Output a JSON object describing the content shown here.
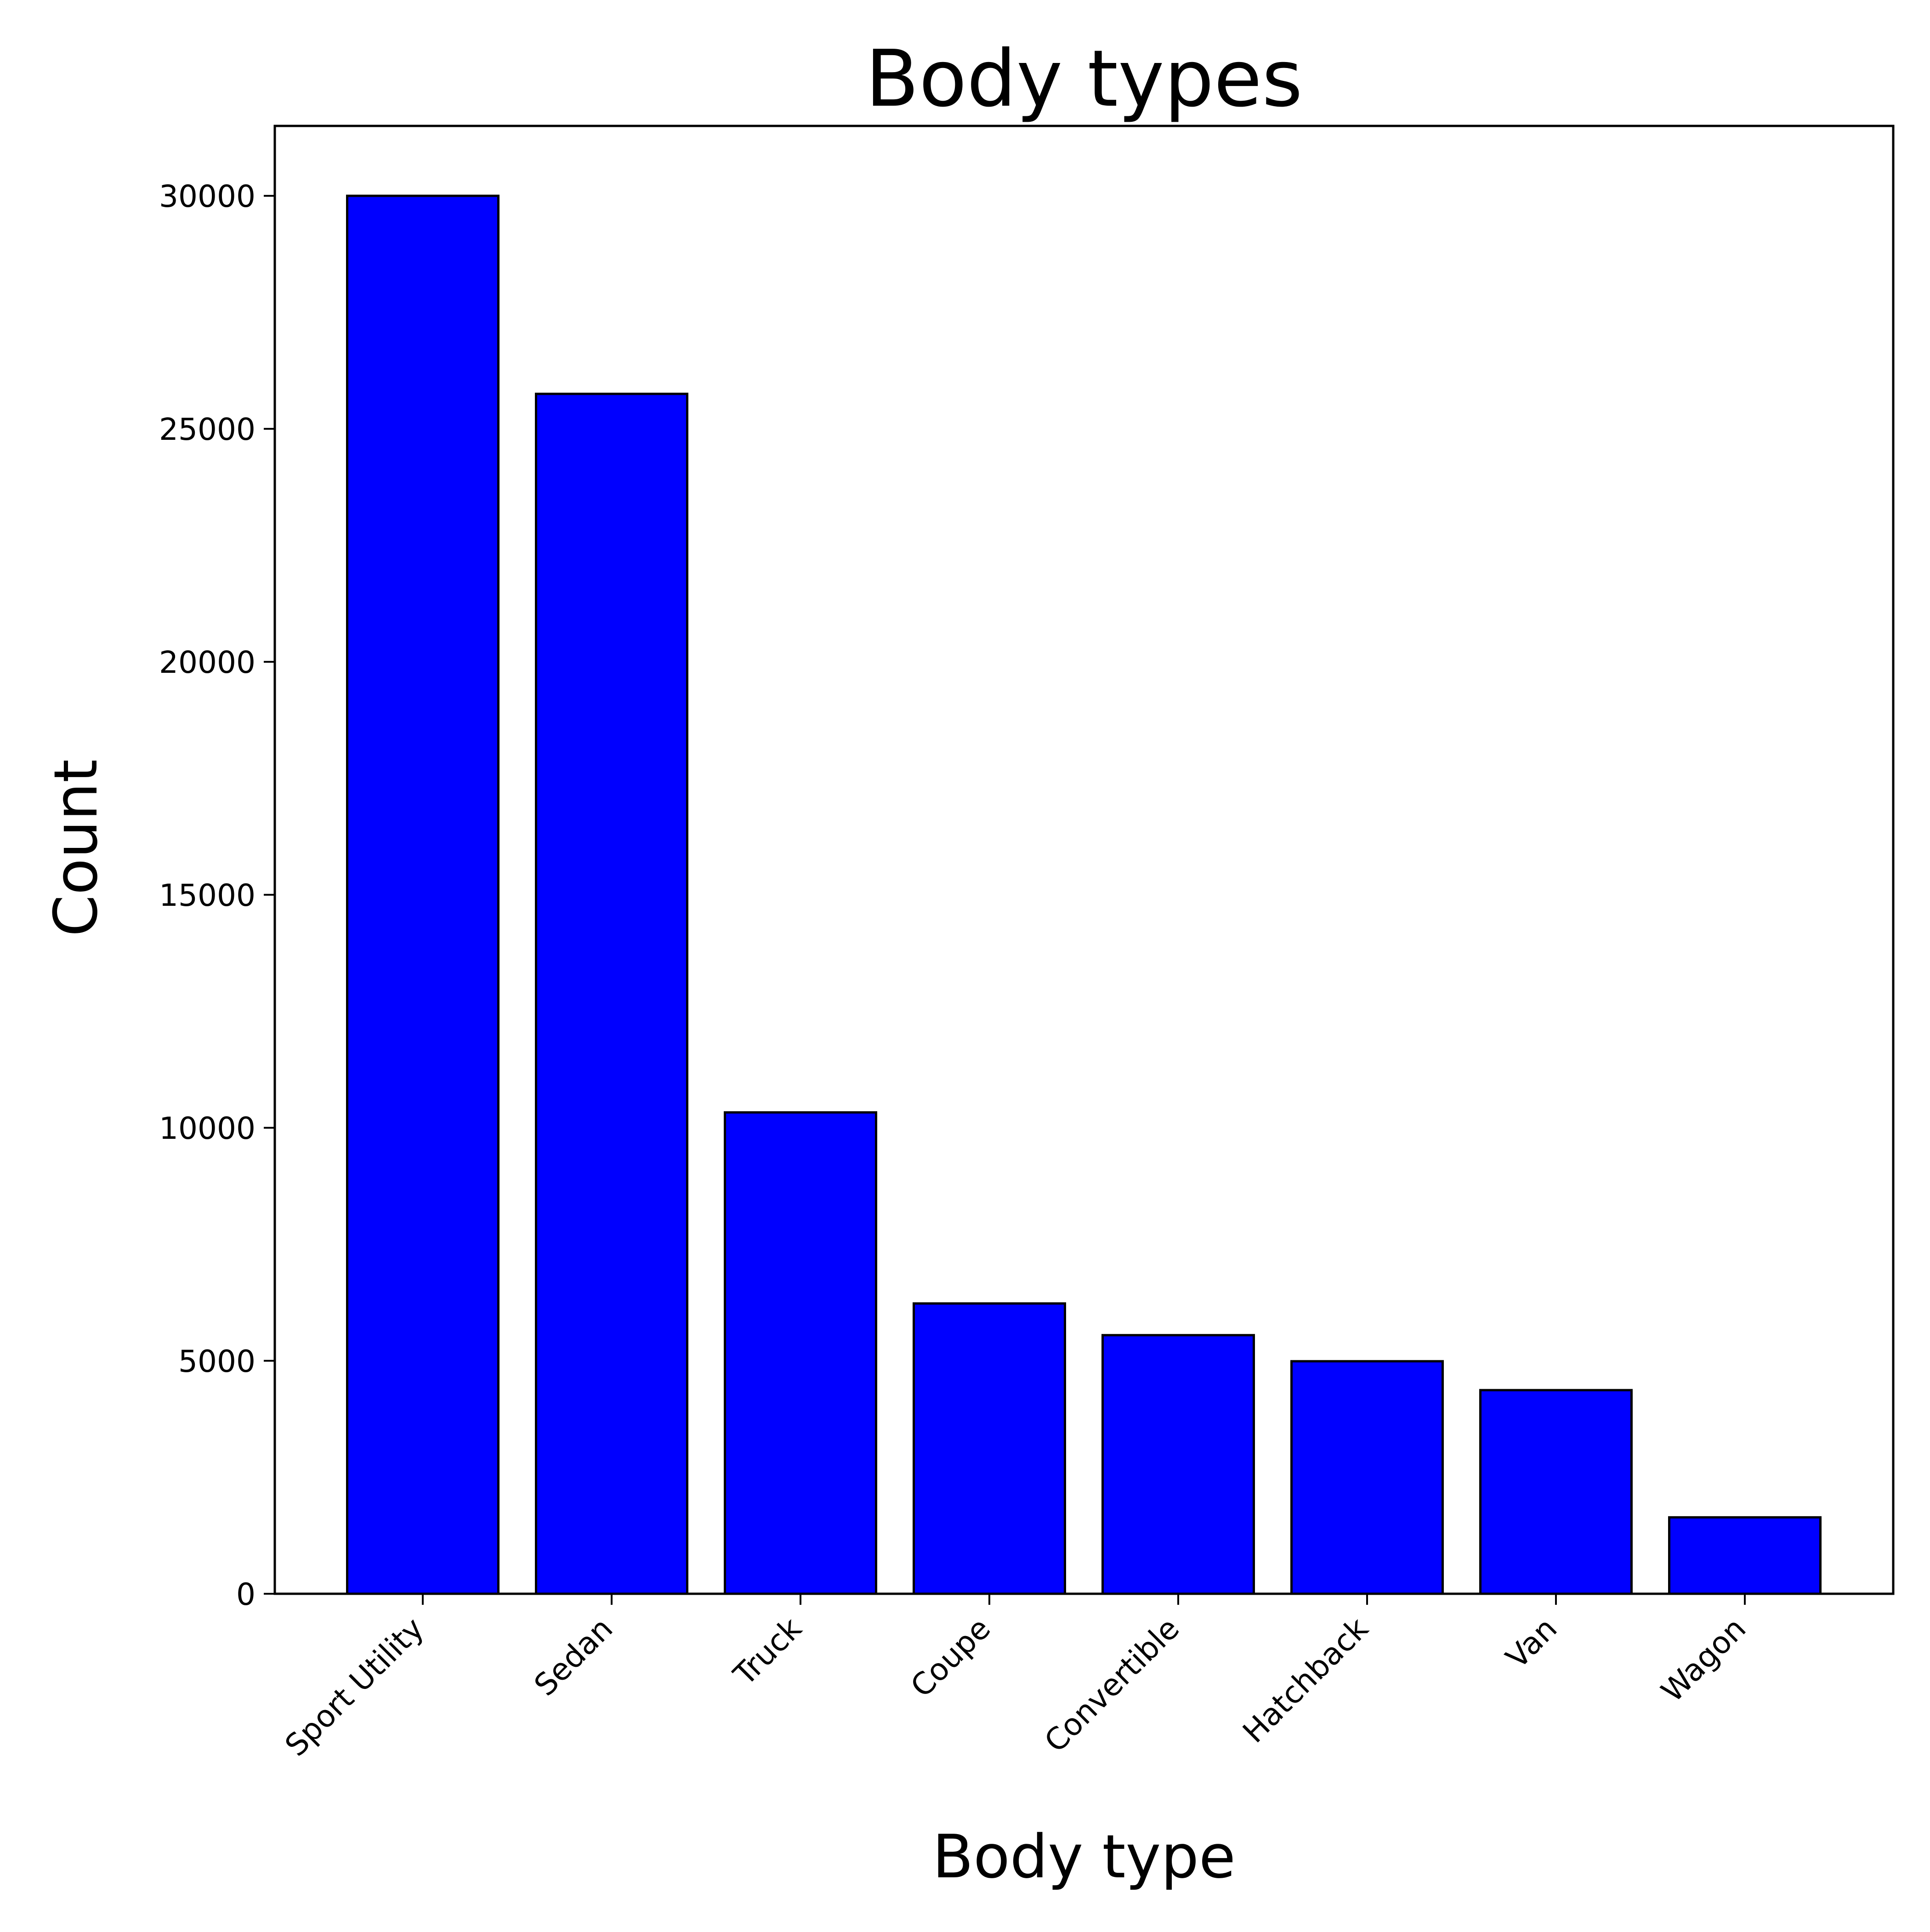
{
  "chart_data": {
    "type": "bar",
    "title": "Body types",
    "xlabel": "Body type",
    "ylabel": "Count",
    "categories": [
      "Sport Utility",
      "Sedan",
      "Truck",
      "Coupe",
      "Convertible",
      "Hatchback",
      "Van",
      "Wagon"
    ],
    "values": [
      30000,
      25750,
      10330,
      6230,
      5550,
      4990,
      4370,
      1640
    ],
    "ylim": [
      0,
      31500
    ],
    "yticks": [
      0,
      5000,
      10000,
      15000,
      20000,
      25000,
      30000
    ],
    "bar_color": "#0000ff",
    "edge_color": "#000000",
    "grid": false,
    "legend": "none"
  }
}
